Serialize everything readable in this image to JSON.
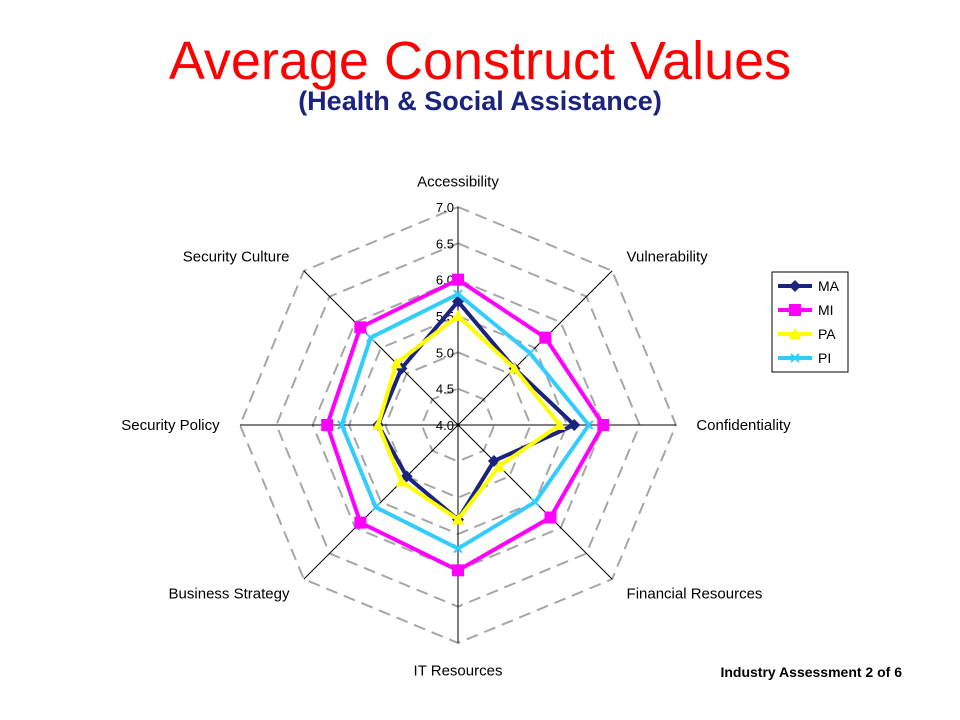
{
  "slide": {
    "title": "Average Construct Values",
    "subtitle": "(Health & Social Assistance)",
    "footer": "Industry Assessment  2 of 6"
  },
  "chart_data": {
    "type": "radar",
    "categories": [
      "Accessibility",
      "Vulnerability",
      "Confidentiality",
      "Financial Resources",
      "IT Resources",
      "Business Strategy",
      "Security Policy",
      "Security Culture"
    ],
    "range": [
      4.0,
      7.0
    ],
    "ticks": [
      "4.0",
      "4.5",
      "5.0",
      "5.5",
      "6.0",
      "6.5",
      "7.0"
    ],
    "grid": true,
    "legend_position": "right",
    "series": [
      {
        "name": "MA",
        "color": "#1a237e",
        "marker": "diamond",
        "values": [
          5.7,
          5.1,
          5.6,
          4.7,
          5.3,
          5.0,
          5.1,
          5.1
        ]
      },
      {
        "name": "MI",
        "color": "#ff00ff",
        "marker": "square",
        "values": [
          6.0,
          5.7,
          6.0,
          5.8,
          6.0,
          5.9,
          5.8,
          5.9
        ]
      },
      {
        "name": "PA",
        "color": "#ffff00",
        "marker": "triangle",
        "values": [
          5.5,
          5.1,
          5.4,
          4.8,
          5.3,
          5.1,
          5.1,
          5.2
        ]
      },
      {
        "name": "PI",
        "color": "#33ccff",
        "marker": "x",
        "values": [
          5.8,
          5.4,
          5.8,
          5.5,
          5.7,
          5.6,
          5.6,
          5.7
        ]
      }
    ]
  }
}
